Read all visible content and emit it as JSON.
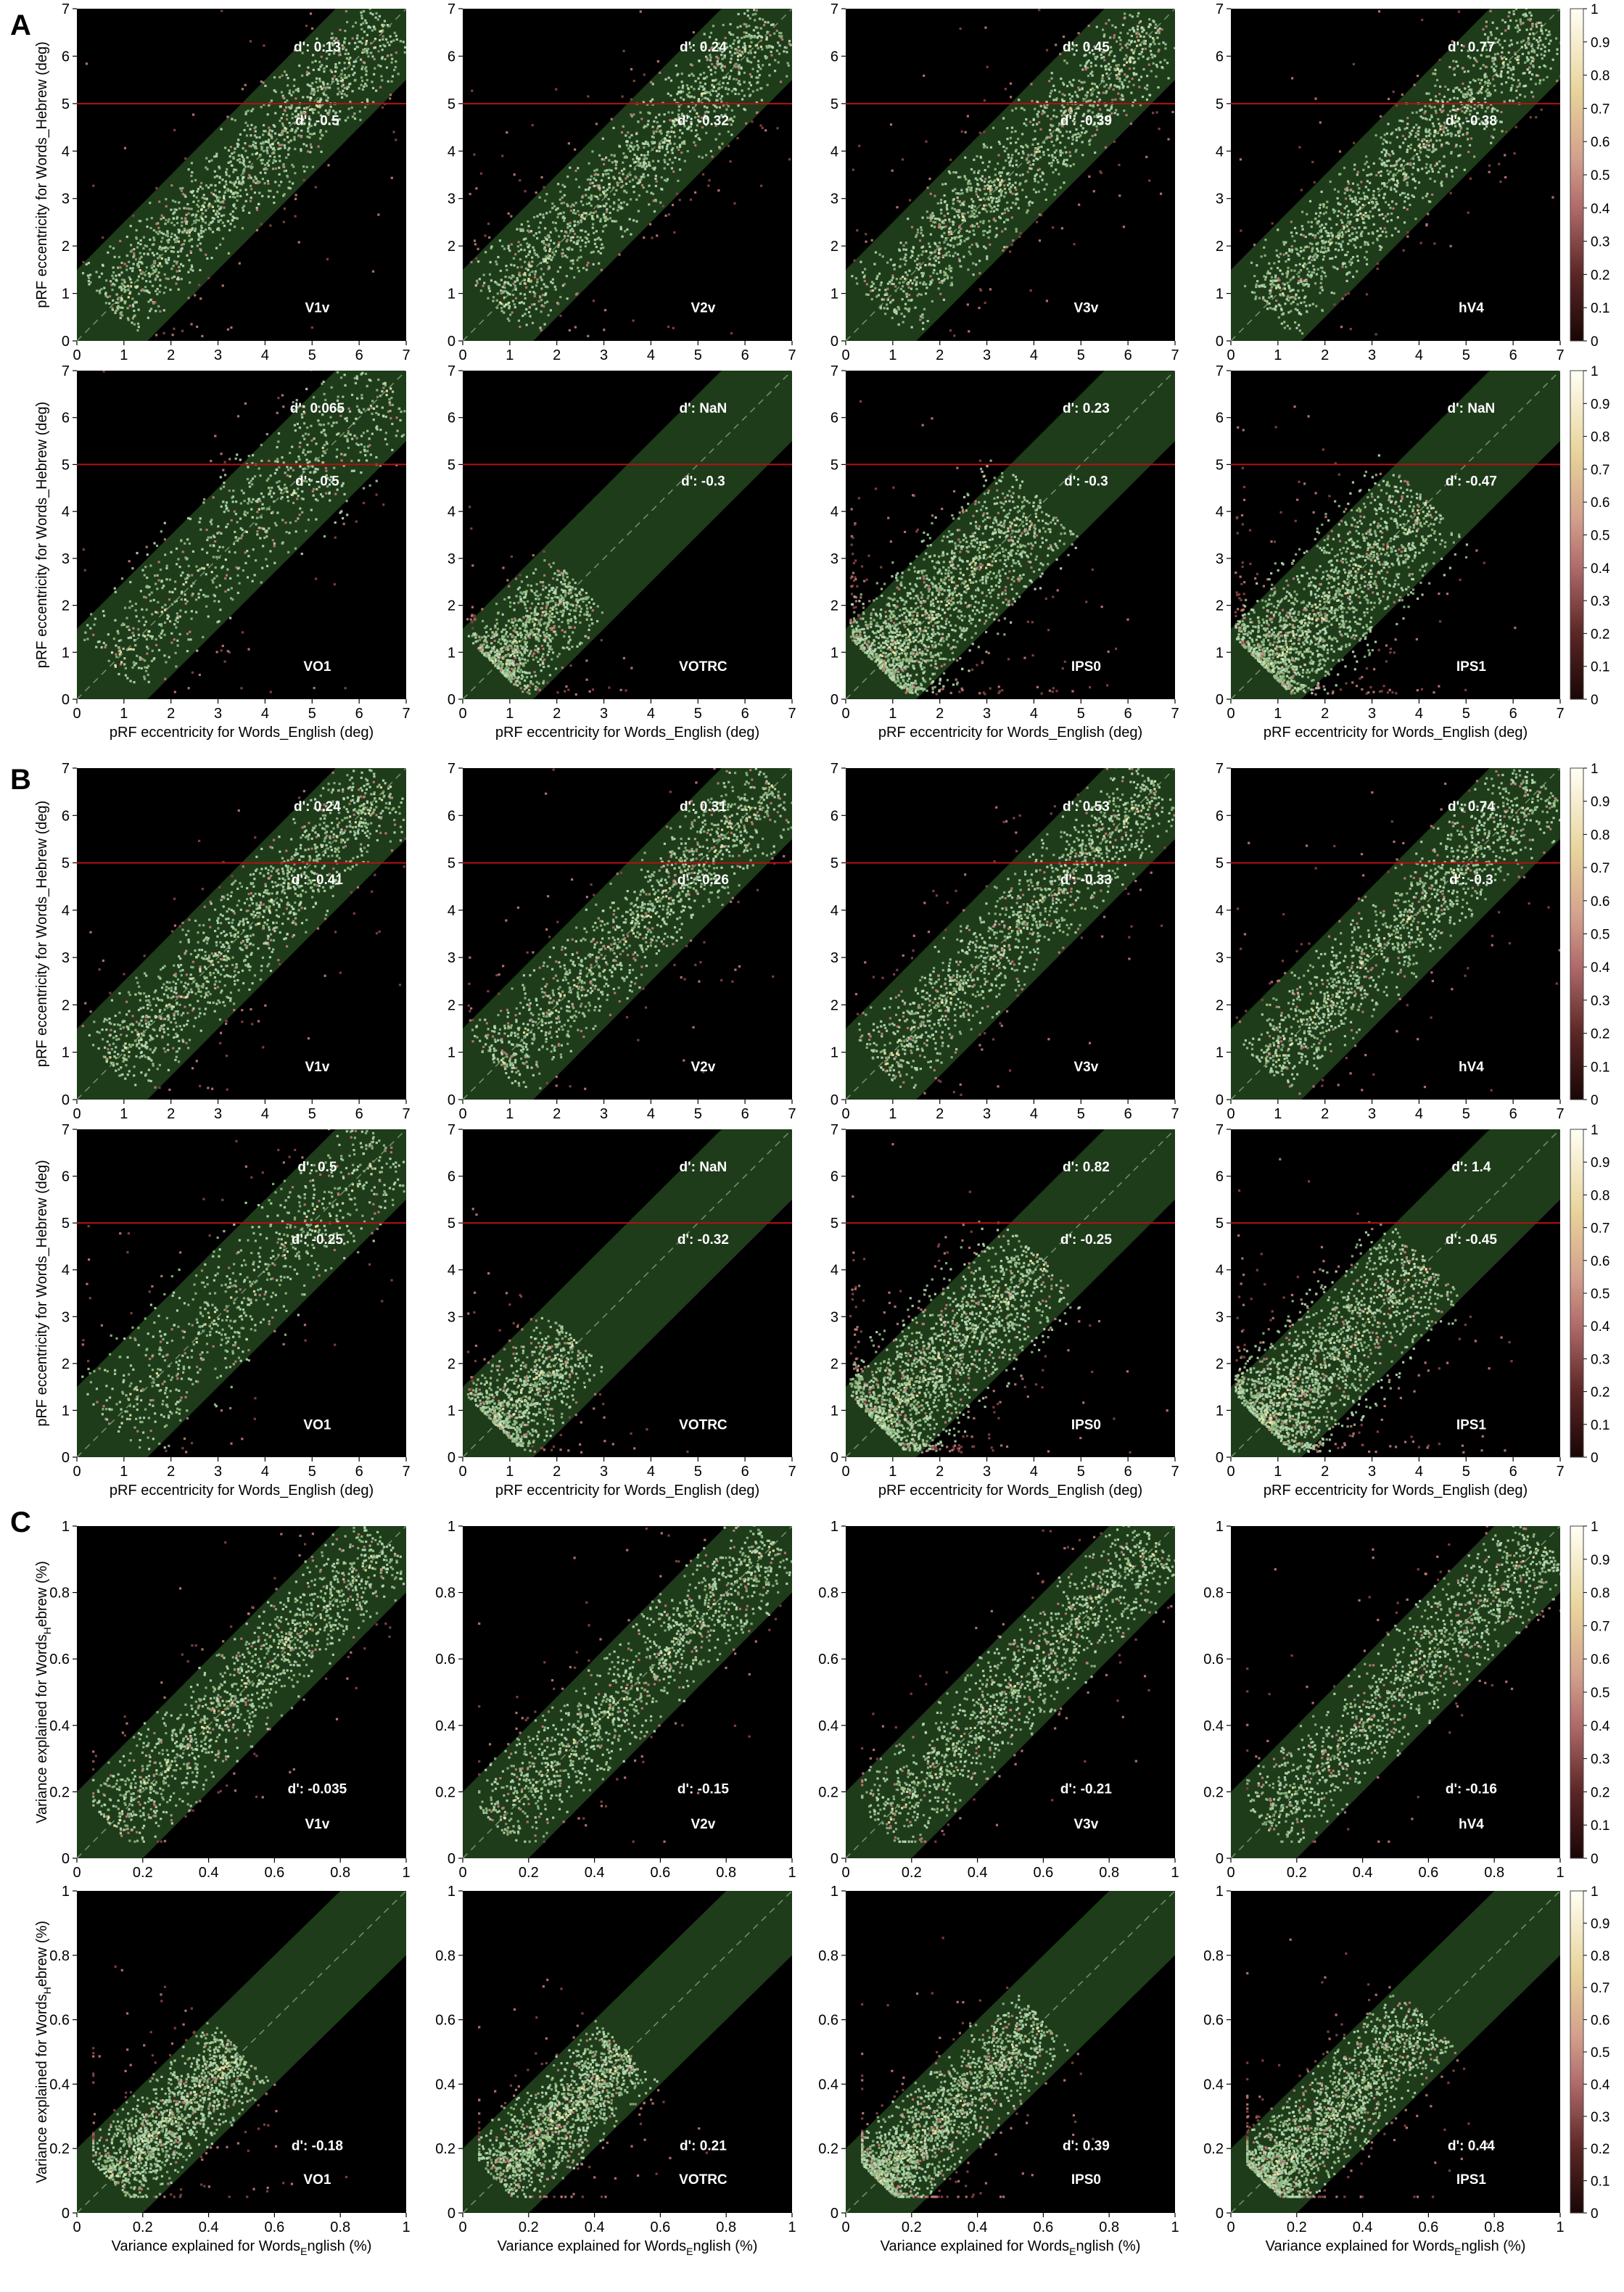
{
  "figure": {
    "panels": [
      {
        "letter": "A",
        "kind": "eccentricity",
        "rows": [
          [
            {
              "roi": "V1v",
              "d_upper": "d': 0.13",
              "d_lower": "d': -0.5"
            },
            {
              "roi": "V2v",
              "d_upper": "d': 0.24",
              "d_lower": "d': -0.32"
            },
            {
              "roi": "V3v",
              "d_upper": "d': 0.45",
              "d_lower": "d': -0.39"
            },
            {
              "roi": "hV4",
              "d_upper": "d': 0.77",
              "d_lower": "d': -0.38"
            }
          ],
          [
            {
              "roi": "VO1",
              "d_upper": "d': 0.065",
              "d_lower": "d': -0.5"
            },
            {
              "roi": "VOTRC",
              "d_upper": "d': NaN",
              "d_lower": "d': -0.3"
            },
            {
              "roi": "IPS0",
              "d_upper": "d': 0.23",
              "d_lower": "d': -0.3"
            },
            {
              "roi": "IPS1",
              "d_upper": "d': NaN",
              "d_lower": "d': -0.47"
            }
          ]
        ]
      },
      {
        "letter": "B",
        "kind": "eccentricity",
        "rows": [
          [
            {
              "roi": "V1v",
              "d_upper": "d': 0.24",
              "d_lower": "d': -0.41"
            },
            {
              "roi": "V2v",
              "d_upper": "d': 0.31",
              "d_lower": "d': -0.26"
            },
            {
              "roi": "V3v",
              "d_upper": "d': 0.53",
              "d_lower": "d': -0.33"
            },
            {
              "roi": "hV4",
              "d_upper": "d': 0.74",
              "d_lower": "d': -0.3"
            }
          ],
          [
            {
              "roi": "VO1",
              "d_upper": "d': 0.5",
              "d_lower": "d': -0.25"
            },
            {
              "roi": "VOTRC",
              "d_upper": "d': NaN",
              "d_lower": "d': -0.32"
            },
            {
              "roi": "IPS0",
              "d_upper": "d': 0.82",
              "d_lower": "d': -0.25"
            },
            {
              "roi": "IPS1",
              "d_upper": "d': 1.4",
              "d_lower": "d': -0.45"
            }
          ]
        ]
      },
      {
        "letter": "C",
        "kind": "variance",
        "rows": [
          [
            {
              "roi": "V1v",
              "d_lower": "d': -0.035"
            },
            {
              "roi": "V2v",
              "d_lower": "d': -0.15"
            },
            {
              "roi": "V3v",
              "d_lower": "d': -0.21"
            },
            {
              "roi": "hV4",
              "d_lower": "d': -0.16"
            }
          ],
          [
            {
              "roi": "VO1",
              "d_lower": "d': -0.18"
            },
            {
              "roi": "VOTRC",
              "d_lower": "d': 0.21"
            },
            {
              "roi": "IPS0",
              "d_lower": "d': 0.39"
            },
            {
              "roi": "IPS1",
              "d_lower": "d': 0.44"
            }
          ]
        ]
      }
    ],
    "colorbar_ticks": [
      "0",
      "0.1",
      "0.2",
      "0.3",
      "0.4",
      "0.5",
      "0.6",
      "0.7",
      "0.8",
      "0.9",
      "1"
    ]
  },
  "chart_data": [
    {
      "type": "scatter",
      "title": "",
      "xlabel": "pRF eccentricity for Words_English (deg)",
      "ylabel": "pRF eccentricity for Words_Hebrew (deg)",
      "xlim": [
        0,
        7
      ],
      "ylim": [
        0,
        7
      ],
      "xticks": [
        "0",
        "1",
        "2",
        "3",
        "4",
        "5",
        "6",
        "7"
      ],
      "yticks": [
        "0",
        "1",
        "2",
        "3",
        "4",
        "5",
        "6",
        "7"
      ],
      "reference_line_y": 5,
      "band_halfwidth": 1.5,
      "colorbar_range": [
        0,
        1
      ],
      "panels": [
        "A",
        "B"
      ]
    },
    {
      "type": "scatter",
      "title": "",
      "xlabel_parts": [
        "Variance explained for Words",
        "E",
        "nglish (%)"
      ],
      "ylabel_parts": [
        "Variance explained for Words",
        "H",
        "ebrew (%)"
      ],
      "xlim": [
        0,
        1
      ],
      "ylim": [
        0,
        1
      ],
      "xticks": [
        "0",
        "0.2",
        "0.4",
        "0.6",
        "0.8",
        "1"
      ],
      "yticks": [
        "0",
        "0.2",
        "0.4",
        "0.6",
        "0.8",
        "1"
      ],
      "band_halfwidth": 0.2,
      "colorbar_range": [
        0,
        1
      ],
      "panels": [
        "C"
      ]
    }
  ],
  "colors": {
    "plot_bg": "#000000",
    "band": "#1e3b1a",
    "ref_line": "#b01313",
    "diag": "#6e8f68",
    "point_light": "#b8dcb6",
    "point_mid": "#8fba83",
    "point_pink": "#c27b7b",
    "point_cream": "#f2eab0",
    "annotation": "#ffffff"
  }
}
